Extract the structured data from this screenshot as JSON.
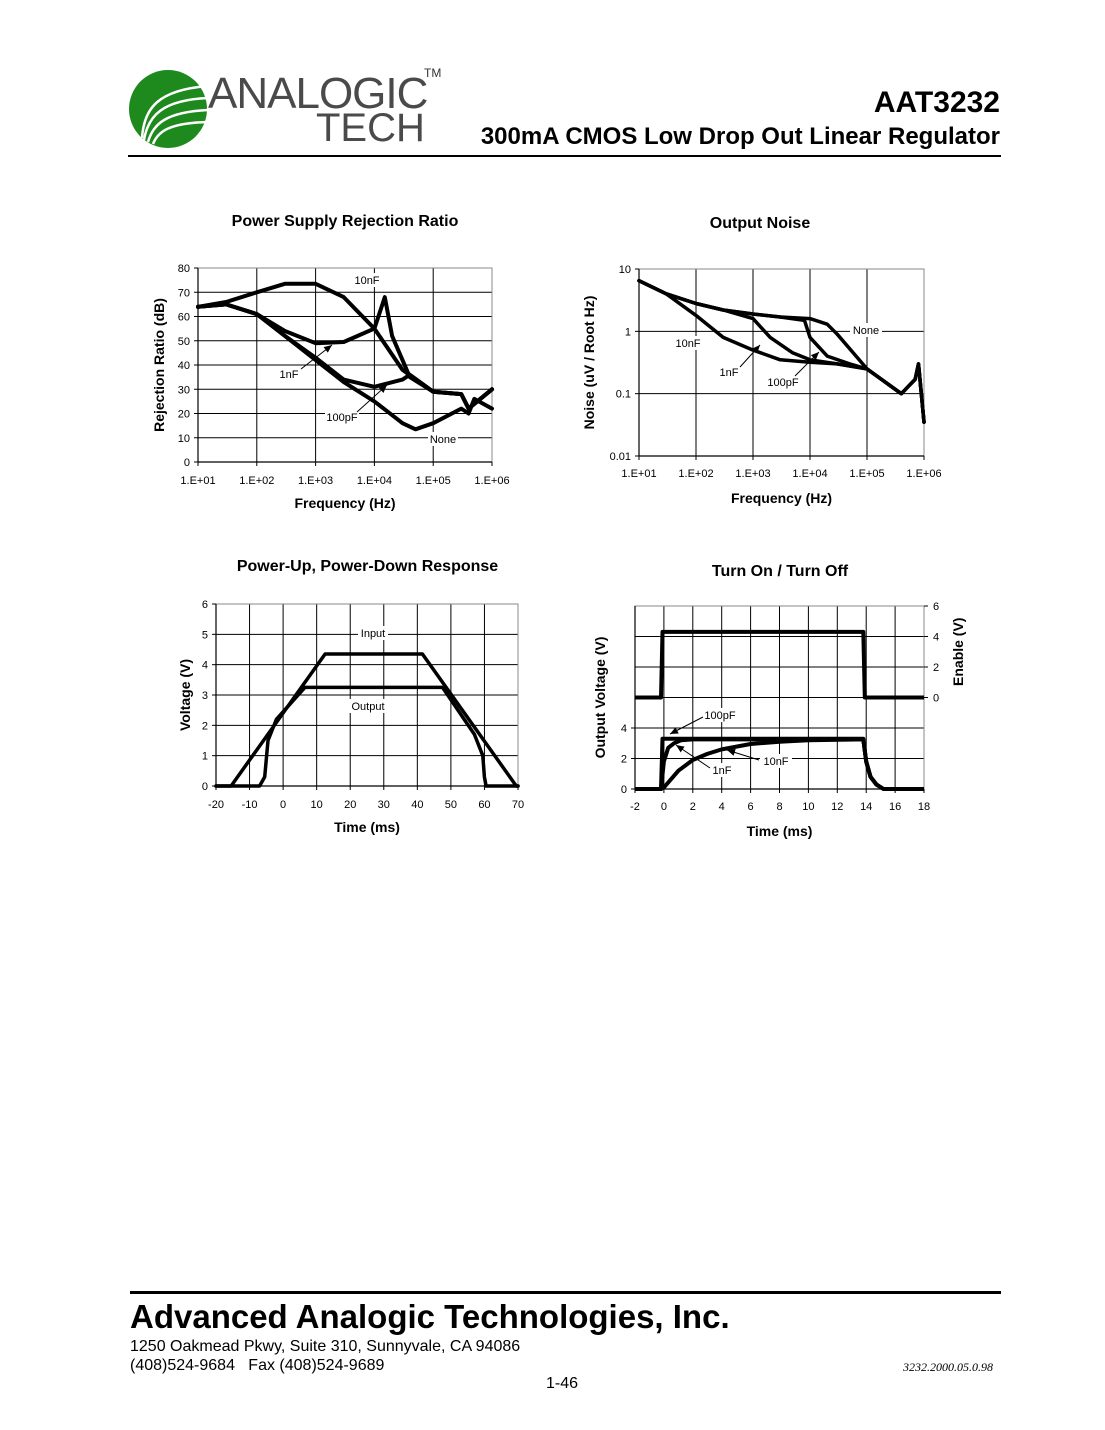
{
  "header": {
    "logo": {
      "line1": "ANALOGIC",
      "line2": "TECH",
      "trademark": "TM",
      "icon": "analogictech-globe-icon",
      "brand_color": "#1e8a1e"
    },
    "part_number": "AAT3232",
    "subtitle": "300mA CMOS Low Drop Out Linear Regulator"
  },
  "footer": {
    "company": "Advanced Analogic Technologies, Inc.",
    "address": "1250 Oakmead Pkwy, Suite 310, Sunnyvale, CA 94086",
    "phone": "(408)524-9684   Fax (408)524-9689",
    "page_number": "1-46",
    "document_number": "3232.2000.05.0.98"
  },
  "chart_data": [
    {
      "id": "psrr",
      "type": "line",
      "title": "Power Supply Rejection Ratio",
      "xlabel": "Frequency (Hz)",
      "ylabel": "Rejection Ratio (dB)",
      "xscale": "log",
      "xlim": [
        10,
        1000000
      ],
      "ylim": [
        0,
        80
      ],
      "xticks": [
        "1.E+01",
        "1.E+02",
        "1.E+03",
        "1.E+04",
        "1.E+05",
        "1.E+06"
      ],
      "yticks": [
        "0",
        "10",
        "20",
        "30",
        "40",
        "50",
        "60",
        "70",
        "80"
      ],
      "grid": true,
      "series": [
        {
          "name": "10nF",
          "x": [
            10,
            30,
            100,
            300,
            1000,
            3000,
            10000,
            30000,
            100000,
            300000,
            400000,
            1000000
          ],
          "values": [
            64,
            66,
            70,
            73.5,
            73.5,
            68,
            55,
            38,
            29,
            28,
            22,
            30
          ]
        },
        {
          "name": "1nF",
          "x": [
            10,
            30,
            100,
            300,
            1000,
            3000,
            10000,
            15000,
            20000,
            40000,
            100000,
            300000,
            400000,
            1000000
          ],
          "values": [
            64,
            65,
            61,
            54,
            49,
            49.5,
            55,
            68,
            52,
            35,
            29,
            28,
            22,
            30
          ]
        },
        {
          "name": "100pF",
          "x": [
            10,
            30,
            100,
            300,
            1000,
            3000,
            10000,
            30000,
            40000,
            100000,
            300000,
            400000,
            1000000
          ],
          "values": [
            64,
            65,
            61,
            52,
            43,
            34,
            31,
            34,
            36,
            29,
            28,
            22,
            30
          ]
        },
        {
          "name": "None",
          "x": [
            10,
            30,
            100,
            300,
            1000,
            3000,
            10000,
            30000,
            50000,
            100000,
            300000,
            400000,
            500000,
            1000000
          ],
          "values": [
            64,
            65,
            61,
            52,
            42,
            33,
            25,
            16,
            13.5,
            16,
            22,
            20,
            26,
            22
          ]
        }
      ],
      "annotations": [
        "10nF",
        "1nF",
        "100pF",
        "None"
      ]
    },
    {
      "id": "noise",
      "type": "line",
      "title": "Output Noise",
      "xlabel": "Frequency (Hz)",
      "ylabel": "Noise (uV / Root Hz)",
      "xscale": "log",
      "yscale": "log",
      "xlim": [
        10,
        1000000
      ],
      "ylim": [
        0.01,
        10
      ],
      "xticks": [
        "1.E+01",
        "1.E+02",
        "1.E+03",
        "1.E+04",
        "1.E+05",
        "1.E+06"
      ],
      "yticks": [
        "0.01",
        "0.1",
        "1",
        "10"
      ],
      "grid": true,
      "series": [
        {
          "name": "None",
          "x": [
            10,
            30,
            100,
            300,
            1000,
            3000,
            10000,
            20000,
            30000,
            100000,
            400000,
            700000,
            800000,
            1000000
          ],
          "values": [
            6.5,
            4,
            2.8,
            2.2,
            1.9,
            1.7,
            1.6,
            1.3,
            0.9,
            0.25,
            0.1,
            0.17,
            0.3,
            0.035
          ]
        },
        {
          "name": "100pF",
          "x": [
            10,
            30,
            100,
            300,
            1000,
            3000,
            8000,
            10000,
            20000,
            50000,
            100000,
            400000,
            700000,
            800000,
            1000000
          ],
          "values": [
            6.5,
            4,
            2.8,
            2.2,
            1.9,
            1.7,
            1.5,
            0.8,
            0.4,
            0.3,
            0.25,
            0.1,
            0.17,
            0.3,
            0.035
          ]
        },
        {
          "name": "1nF",
          "x": [
            10,
            30,
            100,
            300,
            1000,
            2000,
            5000,
            10000,
            30000,
            100000,
            400000,
            700000,
            800000,
            1000000
          ],
          "values": [
            6.5,
            4,
            2.8,
            2.2,
            1.6,
            0.8,
            0.45,
            0.35,
            0.3,
            0.25,
            0.1,
            0.17,
            0.3,
            0.035
          ]
        },
        {
          "name": "10nF",
          "x": [
            10,
            30,
            100,
            300,
            1000,
            3000,
            10000,
            30000,
            100000,
            400000,
            700000,
            800000,
            1000000
          ],
          "values": [
            6.5,
            4,
            1.8,
            0.8,
            0.5,
            0.35,
            0.32,
            0.3,
            0.25,
            0.1,
            0.17,
            0.3,
            0.035
          ]
        }
      ],
      "annotations": [
        "None",
        "10nF",
        "1nF",
        "100pF"
      ]
    },
    {
      "id": "power-up-down",
      "type": "line",
      "title": "Power-Up, Power-Down Response",
      "xlabel": "Time (ms)",
      "ylabel": "Voltage (V)",
      "xlim": [
        -20,
        70
      ],
      "ylim": [
        0,
        6
      ],
      "xticks": [
        "-20",
        "-10",
        "0",
        "10",
        "20",
        "30",
        "40",
        "50",
        "60",
        "70"
      ],
      "yticks": [
        "0",
        "1",
        "2",
        "3",
        "4",
        "5",
        "6"
      ],
      "grid": true,
      "series": [
        {
          "name": "Input",
          "x": [
            -20,
            -15.5,
            12.5,
            41.5,
            69.5,
            70
          ],
          "values": [
            0,
            0,
            4.35,
            4.35,
            0,
            0
          ]
        },
        {
          "name": "Output",
          "x": [
            -20,
            -7,
            -5.5,
            -4.5,
            -2,
            6.5,
            47.5,
            57,
            59.5,
            60,
            60.5,
            70
          ],
          "values": [
            0,
            0,
            0.3,
            1.5,
            2.2,
            3.25,
            3.25,
            1.7,
            1.0,
            0.3,
            0,
            0
          ]
        }
      ],
      "annotations": [
        "Input",
        "Output"
      ]
    },
    {
      "id": "turn-on-off",
      "type": "line",
      "title": "Turn On / Turn Off",
      "xlabel": "Time (ms)",
      "ylabel": "Output Voltage (V)",
      "ylabel_right": "Enable (V)",
      "xlim": [
        -2,
        18
      ],
      "ylim": [
        0,
        12
      ],
      "xticks": [
        "-2",
        "0",
        "2",
        "4",
        "6",
        "8",
        "10",
        "12",
        "14",
        "16",
        "18"
      ],
      "yticks_left": [
        "0",
        "2",
        "4"
      ],
      "yticks_right": [
        "0",
        "2",
        "4",
        "6"
      ],
      "grid": true,
      "series": [
        {
          "name": "Enable",
          "axis": "right",
          "x": [
            -2,
            -0.2,
            -0.1,
            13.8,
            13.9,
            18
          ],
          "values": [
            0,
            0,
            4.3,
            4.3,
            0,
            0
          ]
        },
        {
          "name": "100pF",
          "axis": "left",
          "x": [
            -2,
            -0.2,
            -0.1,
            13.8,
            14,
            14.3,
            14.7,
            15.2,
            18
          ],
          "values": [
            0,
            0,
            3.3,
            3.3,
            1.8,
            0.8,
            0.3,
            0,
            0
          ]
        },
        {
          "name": "1nF",
          "axis": "left",
          "x": [
            -2,
            -0.2,
            0,
            0.3,
            0.7,
            1.2,
            2,
            13.8,
            14,
            14.3,
            14.7,
            15.2,
            18
          ],
          "values": [
            0,
            0,
            1.8,
            2.7,
            3.0,
            3.2,
            3.25,
            3.25,
            1.8,
            0.8,
            0.3,
            0,
            0
          ]
        },
        {
          "name": "10nF",
          "axis": "left",
          "x": [
            -2,
            -0.2,
            0,
            1,
            2,
            3,
            4,
            6,
            8,
            10,
            13.8,
            14,
            14.3,
            14.7,
            15.2,
            18
          ],
          "values": [
            0,
            0,
            0.1,
            1.2,
            1.9,
            2.3,
            2.6,
            2.95,
            3.1,
            3.2,
            3.25,
            1.8,
            0.8,
            0.3,
            0,
            0
          ]
        }
      ],
      "annotations": [
        "100pF",
        "1nF",
        "10nF"
      ]
    }
  ]
}
